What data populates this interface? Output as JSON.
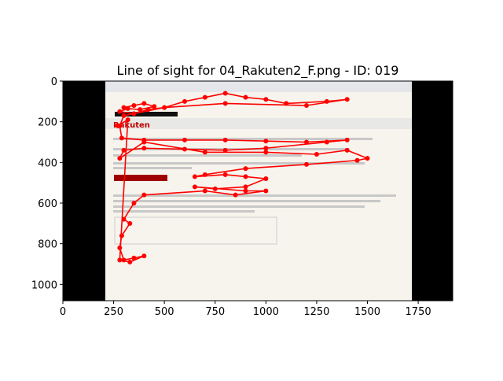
{
  "chart_data": {
    "type": "scanpath",
    "title": "Line of sight for 04_Rakuten2_F.png - ID: 019",
    "image_text": "Rakuten",
    "xlim": [
      0,
      1920
    ],
    "ylim": [
      1080,
      0
    ],
    "xticks": [
      0,
      250,
      500,
      750,
      1000,
      1250,
      1500,
      1750
    ],
    "yticks": [
      0,
      200,
      400,
      600,
      800,
      1000
    ],
    "series": [
      {
        "color": "#ff0000",
        "x": [
          300,
          350,
          400,
          450,
          380,
          320,
          280,
          350,
          420,
          500,
          600,
          700,
          800,
          900,
          1000,
          1100,
          1300,
          1400,
          1200,
          800,
          500,
          300,
          280,
          290,
          400,
          600,
          800,
          1000,
          1200,
          1400,
          1300,
          1000,
          800,
          600,
          400,
          300,
          280,
          400,
          700,
          1000,
          1250,
          1400,
          1500,
          1450,
          1200,
          900,
          700,
          650,
          800,
          900,
          1000,
          900,
          750,
          650,
          900,
          1000,
          850,
          700,
          400,
          350,
          300,
          330,
          290,
          280,
          300,
          350,
          400,
          330,
          280,
          320,
          270
        ],
        "y": [
          130,
          120,
          110,
          125,
          140,
          135,
          150,
          160,
          140,
          130,
          100,
          80,
          60,
          80,
          90,
          110,
          100,
          90,
          120,
          110,
          130,
          170,
          220,
          280,
          290,
          290,
          290,
          295,
          300,
          290,
          300,
          330,
          340,
          335,
          330,
          340,
          380,
          300,
          350,
          350,
          360,
          340,
          380,
          390,
          410,
          430,
          460,
          470,
          460,
          470,
          480,
          520,
          530,
          520,
          540,
          540,
          560,
          540,
          560,
          600,
          680,
          700,
          760,
          820,
          880,
          870,
          860,
          890,
          880,
          190,
          220
        ]
      }
    ]
  }
}
